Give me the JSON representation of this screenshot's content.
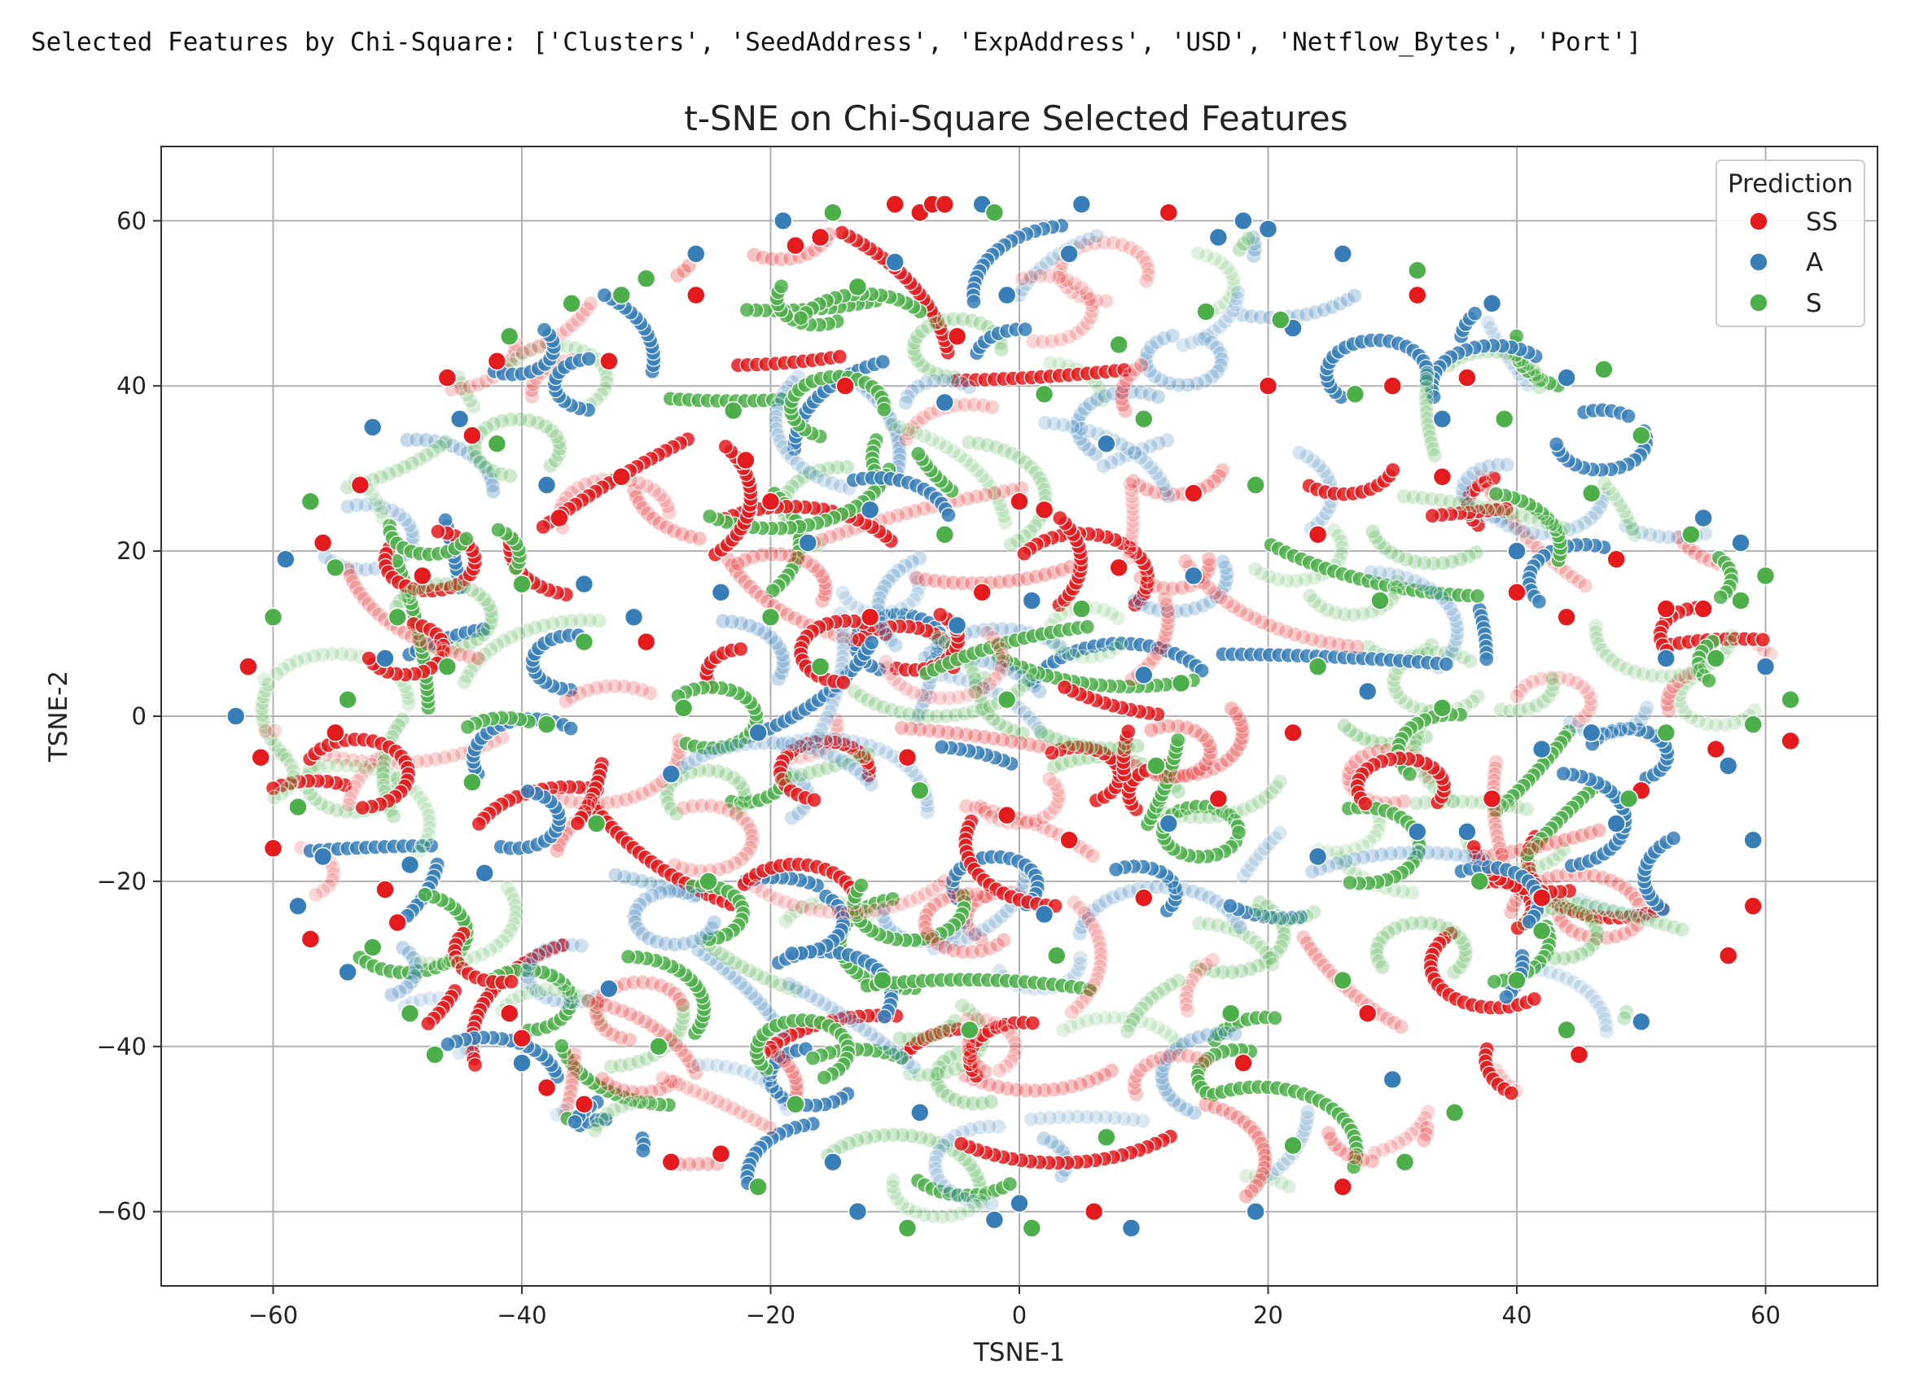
{
  "console": {
    "text": "Selected Features by Chi-Square: ['Clusters', 'SeedAddress', 'ExpAddress', 'USD', 'Netflow_Bytes', 'Port']"
  },
  "chart_data": {
    "type": "scatter",
    "title": "t-SNE on Chi-Square Selected Features",
    "xlabel": "TSNE-1",
    "ylabel": "TSNE-2",
    "xlim": [
      -69,
      69
    ],
    "ylim": [
      -69,
      69
    ],
    "xticks": [
      -60,
      -40,
      -20,
      0,
      20,
      40,
      60
    ],
    "yticks": [
      -60,
      -40,
      -20,
      0,
      20,
      40,
      60
    ],
    "grid": true,
    "legend": {
      "title": "Prediction",
      "placement": "top-right",
      "entries": [
        "SS",
        "A",
        "S"
      ]
    },
    "colors": {
      "SS": "#e41a1c",
      "A": "#377eb8",
      "S": "#4daf4a"
    },
    "distribution": "points fill a roughly circular region of radius about 62 centered at (0, 0), arranged in many curved chains; approximate sample shown below",
    "series": [
      {
        "name": "SS",
        "points": [
          [
            -62,
            6
          ],
          [
            -61,
            -5
          ],
          [
            -60,
            -16
          ],
          [
            -57,
            -27
          ],
          [
            -56,
            21
          ],
          [
            -55,
            -2
          ],
          [
            -53,
            28
          ],
          [
            -51,
            -21
          ],
          [
            -50,
            -25
          ],
          [
            -48,
            17
          ],
          [
            -46,
            41
          ],
          [
            -44,
            34
          ],
          [
            -42,
            43
          ],
          [
            -41,
            -36
          ],
          [
            -40,
            -39
          ],
          [
            -38,
            -45
          ],
          [
            -37,
            24
          ],
          [
            -35,
            -47
          ],
          [
            -33,
            43
          ],
          [
            -32,
            29
          ],
          [
            -30,
            9
          ],
          [
            -28,
            -54
          ],
          [
            -26,
            51
          ],
          [
            -24,
            -53
          ],
          [
            -22,
            31
          ],
          [
            -20,
            26
          ],
          [
            -18,
            57
          ],
          [
            -16,
            58
          ],
          [
            -14,
            40
          ],
          [
            -12,
            12
          ],
          [
            -10,
            62
          ],
          [
            -9,
            -5
          ],
          [
            -8,
            61
          ],
          [
            -7,
            62
          ],
          [
            -6,
            62
          ],
          [
            -5,
            46
          ],
          [
            -3,
            15
          ],
          [
            -1,
            -12
          ],
          [
            0,
            26
          ],
          [
            2,
            25
          ],
          [
            4,
            -15
          ],
          [
            6,
            -60
          ],
          [
            8,
            18
          ],
          [
            10,
            -22
          ],
          [
            12,
            61
          ],
          [
            14,
            27
          ],
          [
            16,
            -10
          ],
          [
            18,
            -42
          ],
          [
            20,
            40
          ],
          [
            22,
            -2
          ],
          [
            24,
            22
          ],
          [
            26,
            -57
          ],
          [
            28,
            -36
          ],
          [
            30,
            40
          ],
          [
            32,
            51
          ],
          [
            34,
            29
          ],
          [
            36,
            41
          ],
          [
            38,
            -10
          ],
          [
            40,
            15
          ],
          [
            42,
            -22
          ],
          [
            44,
            12
          ],
          [
            45,
            -41
          ],
          [
            48,
            19
          ],
          [
            50,
            -9
          ],
          [
            52,
            13
          ],
          [
            55,
            13
          ],
          [
            56,
            -4
          ],
          [
            57,
            -29
          ],
          [
            59,
            -23
          ],
          [
            62,
            -3
          ]
        ]
      },
      {
        "name": "A",
        "points": [
          [
            -63,
            0
          ],
          [
            -59,
            19
          ],
          [
            -58,
            -23
          ],
          [
            -56,
            -17
          ],
          [
            -54,
            -31
          ],
          [
            -52,
            35
          ],
          [
            -51,
            7
          ],
          [
            -49,
            -18
          ],
          [
            -45,
            36
          ],
          [
            -43,
            -19
          ],
          [
            -40,
            -42
          ],
          [
            -38,
            28
          ],
          [
            -35,
            16
          ],
          [
            -33,
            -33
          ],
          [
            -31,
            12
          ],
          [
            -28,
            -7
          ],
          [
            -26,
            56
          ],
          [
            -24,
            15
          ],
          [
            -21,
            -2
          ],
          [
            -19,
            60
          ],
          [
            -17,
            21
          ],
          [
            -15,
            -54
          ],
          [
            -13,
            -60
          ],
          [
            -12,
            25
          ],
          [
            -10,
            55
          ],
          [
            -8,
            -48
          ],
          [
            -6,
            38
          ],
          [
            -5,
            11
          ],
          [
            -3,
            62
          ],
          [
            -2,
            -61
          ],
          [
            -1,
            51
          ],
          [
            0,
            -59
          ],
          [
            1,
            14
          ],
          [
            2,
            -24
          ],
          [
            4,
            56
          ],
          [
            5,
            62
          ],
          [
            7,
            33
          ],
          [
            9,
            -62
          ],
          [
            10,
            5
          ],
          [
            12,
            -13
          ],
          [
            14,
            17
          ],
          [
            16,
            58
          ],
          [
            18,
            60
          ],
          [
            19,
            -60
          ],
          [
            20,
            59
          ],
          [
            22,
            47
          ],
          [
            24,
            -17
          ],
          [
            26,
            56
          ],
          [
            28,
            3
          ],
          [
            30,
            -44
          ],
          [
            32,
            -14
          ],
          [
            34,
            36
          ],
          [
            36,
            -14
          ],
          [
            38,
            50
          ],
          [
            40,
            20
          ],
          [
            42,
            -4
          ],
          [
            44,
            41
          ],
          [
            46,
            -2
          ],
          [
            48,
            -13
          ],
          [
            50,
            -37
          ],
          [
            52,
            7
          ],
          [
            55,
            24
          ],
          [
            57,
            -6
          ],
          [
            58,
            21
          ],
          [
            59,
            -15
          ],
          [
            60,
            6
          ]
        ]
      },
      {
        "name": "S",
        "points": [
          [
            -60,
            12
          ],
          [
            -58,
            -11
          ],
          [
            -57,
            26
          ],
          [
            -55,
            18
          ],
          [
            -54,
            2
          ],
          [
            -52,
            -28
          ],
          [
            -50,
            12
          ],
          [
            -49,
            -36
          ],
          [
            -47,
            -41
          ],
          [
            -46,
            6
          ],
          [
            -44,
            -8
          ],
          [
            -42,
            33
          ],
          [
            -41,
            46
          ],
          [
            -40,
            16
          ],
          [
            -38,
            -1
          ],
          [
            -36,
            50
          ],
          [
            -35,
            9
          ],
          [
            -34,
            -13
          ],
          [
            -32,
            51
          ],
          [
            -30,
            53
          ],
          [
            -29,
            -40
          ],
          [
            -27,
            1
          ],
          [
            -25,
            -20
          ],
          [
            -23,
            37
          ],
          [
            -21,
            -57
          ],
          [
            -20,
            12
          ],
          [
            -18,
            -47
          ],
          [
            -16,
            6
          ],
          [
            -15,
            61
          ],
          [
            -13,
            52
          ],
          [
            -11,
            -32
          ],
          [
            -9,
            -62
          ],
          [
            -8,
            -9
          ],
          [
            -6,
            22
          ],
          [
            -4,
            -38
          ],
          [
            -2,
            61
          ],
          [
            -1,
            2
          ],
          [
            1,
            -62
          ],
          [
            2,
            39
          ],
          [
            3,
            -29
          ],
          [
            5,
            13
          ],
          [
            7,
            -51
          ],
          [
            8,
            45
          ],
          [
            10,
            36
          ],
          [
            11,
            -6
          ],
          [
            13,
            4
          ],
          [
            15,
            49
          ],
          [
            17,
            -36
          ],
          [
            19,
            28
          ],
          [
            21,
            48
          ],
          [
            22,
            -52
          ],
          [
            24,
            6
          ],
          [
            26,
            -32
          ],
          [
            27,
            39
          ],
          [
            29,
            14
          ],
          [
            31,
            -54
          ],
          [
            32,
            54
          ],
          [
            34,
            1
          ],
          [
            35,
            -48
          ],
          [
            37,
            -20
          ],
          [
            39,
            36
          ],
          [
            40,
            -32
          ],
          [
            42,
            -26
          ],
          [
            44,
            -38
          ],
          [
            46,
            27
          ],
          [
            47,
            42
          ],
          [
            49,
            -10
          ],
          [
            50,
            34
          ],
          [
            52,
            -2
          ],
          [
            54,
            22
          ],
          [
            56,
            7
          ],
          [
            58,
            14
          ],
          [
            59,
            -1
          ],
          [
            60,
            17
          ],
          [
            62,
            2
          ]
        ]
      }
    ]
  }
}
